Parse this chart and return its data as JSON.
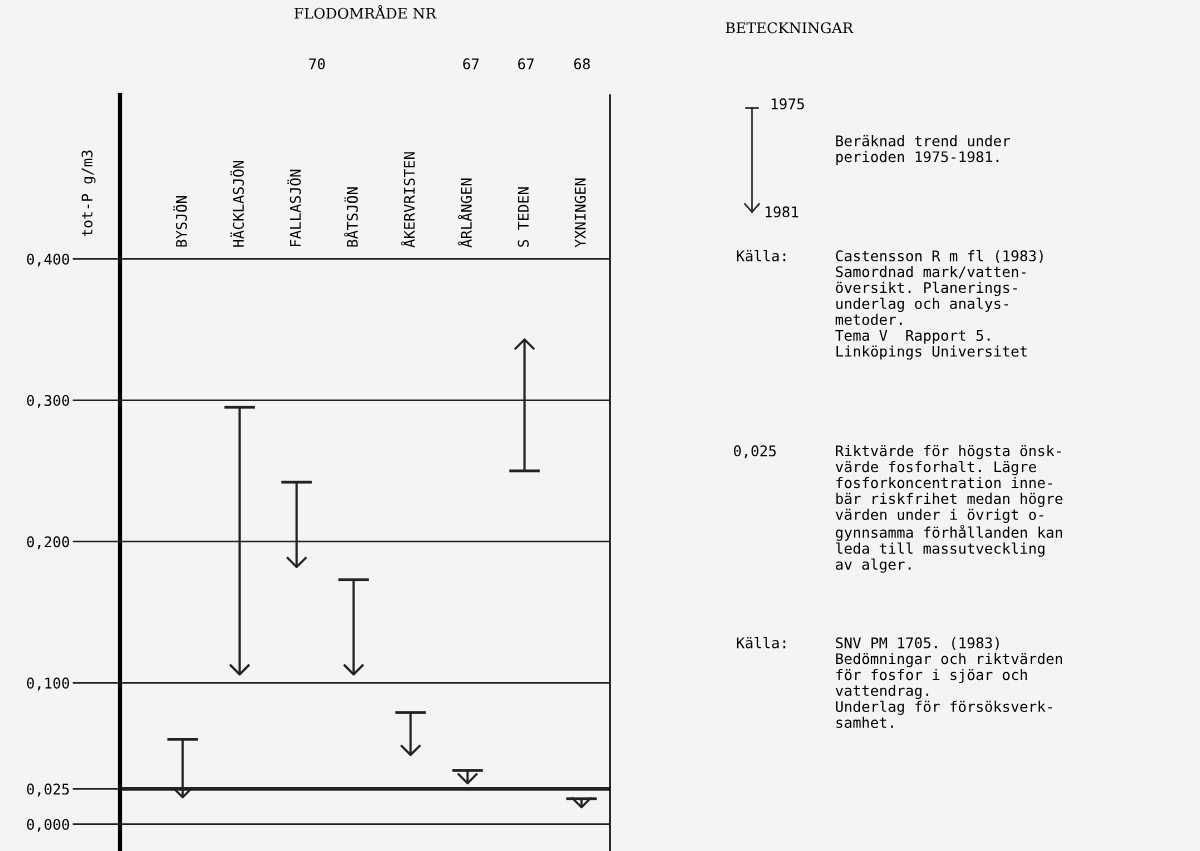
{
  "chart_data": {
    "type": "bar",
    "title": "FLODOMRÅDE NR",
    "ylabel": "tot-P g/m3",
    "categories": [
      "BYSJÖN",
      "HÄCKLASJÖN",
      "FALLASJÖN",
      "BÅTSJÖN",
      "ÅKERVRISTEN",
      "ÅRLÅNGEN",
      "S TEDEN",
      "YXNINGEN"
    ],
    "base": [
      0.06,
      0.295,
      0.242,
      0.173,
      0.079,
      0.038,
      0.25,
      0.018
    ],
    "values": [
      -0.041,
      -0.189,
      -0.06,
      -0.067,
      -0.03,
      -0.009,
      0.093,
      -0.006
    ],
    "color": "#222222",
    "ylim": [
      -0.019,
      0.516
    ],
    "yticks": [
      {
        "value": 0.0,
        "label": "0,000"
      },
      {
        "value": 0.025,
        "label": "0,025"
      },
      {
        "value": 0.1,
        "label": "0,100"
      },
      {
        "value": 0.2,
        "label": "0,200"
      },
      {
        "value": 0.3,
        "label": "0,300"
      },
      {
        "value": 0.4,
        "label": "0,400"
      }
    ],
    "grid": "y",
    "ref_lines": [
      {
        "axis": "y",
        "value": 0.025,
        "color": "#222222"
      }
    ],
    "annotations": [
      "70",
      "67",
      "67",
      "68",
      "BETECKNINGAR",
      "1975",
      "1981",
      "Beräknad trend under\nperioden 1975-1981.",
      "Källa:",
      "Castensson R m fl (1983)\nSamordnad mark/vatten-\növersikt. Planerings-\nunderlag och analys-\nmetoder.\nTema V  Rapport 5.\nLinköpings Universitet",
      "0,025",
      "Riktvärde för högsta önsk-\nvärde fosforhalt. Lägre\nfosforkoncentration inne-\nbär riskfrihet medan högre\nvärden under i övrigt o-\ngynnsamma förhållanden kan\nleda till massutveckling\nav alger.",
      "Källa:",
      "SNV PM 1705. (1983)\nBedömningar och riktvärden\nför fosfor i sjöar och\nvattendrag.\nUnderlag för försöksverk-\nsamhet."
    ]
  }
}
